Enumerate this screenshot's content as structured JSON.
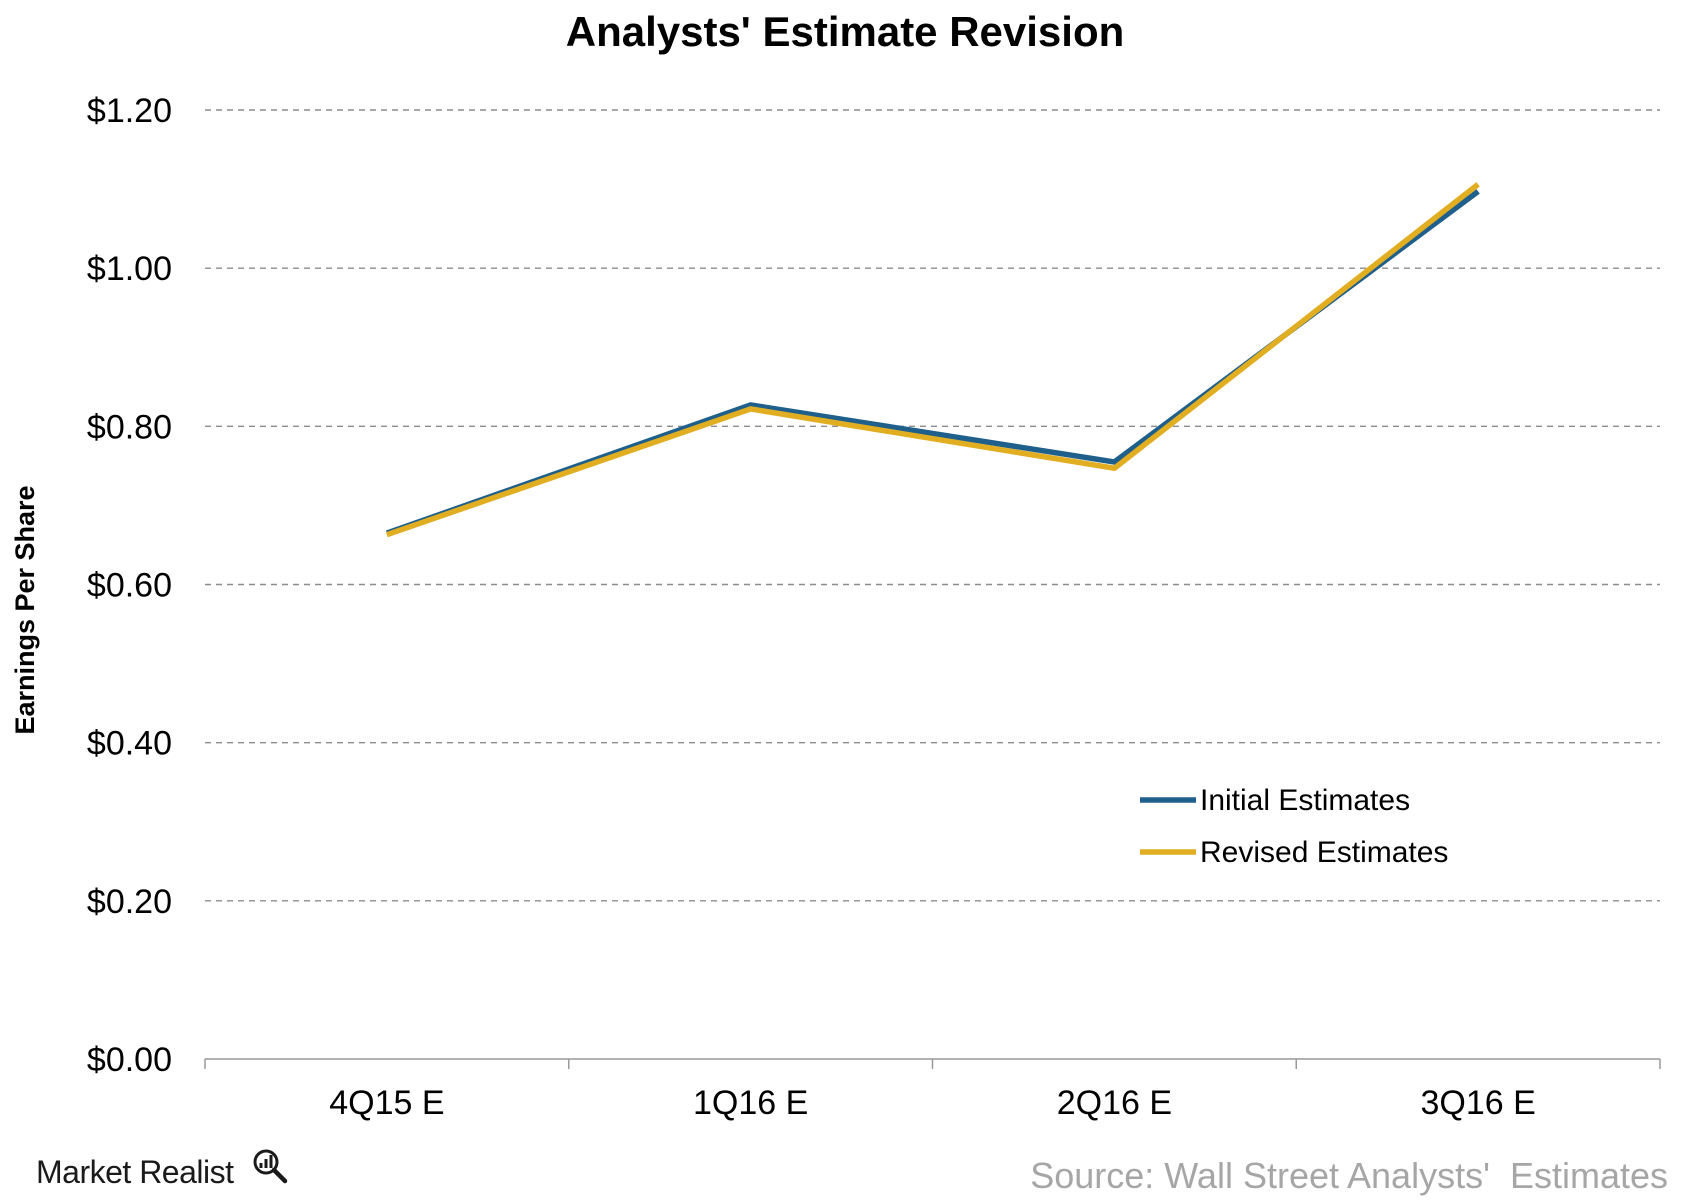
{
  "chart_data": {
    "type": "line",
    "title": "Analysts' Estimate Revision",
    "ylabel": "Earnings Per Share",
    "xlabel": "",
    "categories": [
      "4Q15 E",
      "1Q16 E",
      "2Q16 E",
      "3Q16 E"
    ],
    "yticks": [
      "$0.00",
      "$0.20",
      "$0.40",
      "$0.60",
      "$0.80",
      "$1.00",
      "$1.20"
    ],
    "ylim": [
      0,
      1.2
    ],
    "grid": true,
    "legend_position": "lower-right",
    "series": [
      {
        "name": "Initial Estimates",
        "color": "#1f5f8b",
        "values": [
          0.665,
          0.827,
          0.755,
          1.097
        ]
      },
      {
        "name": "Revised Estimates",
        "color": "#e1ad21",
        "values": [
          0.663,
          0.822,
          0.747,
          1.106
        ]
      }
    ]
  },
  "footer": {
    "brand": "Market Realist",
    "brand_icon": "magnifier-chart-icon",
    "source": "Source: Wall Street Analysts'  Estimates"
  }
}
